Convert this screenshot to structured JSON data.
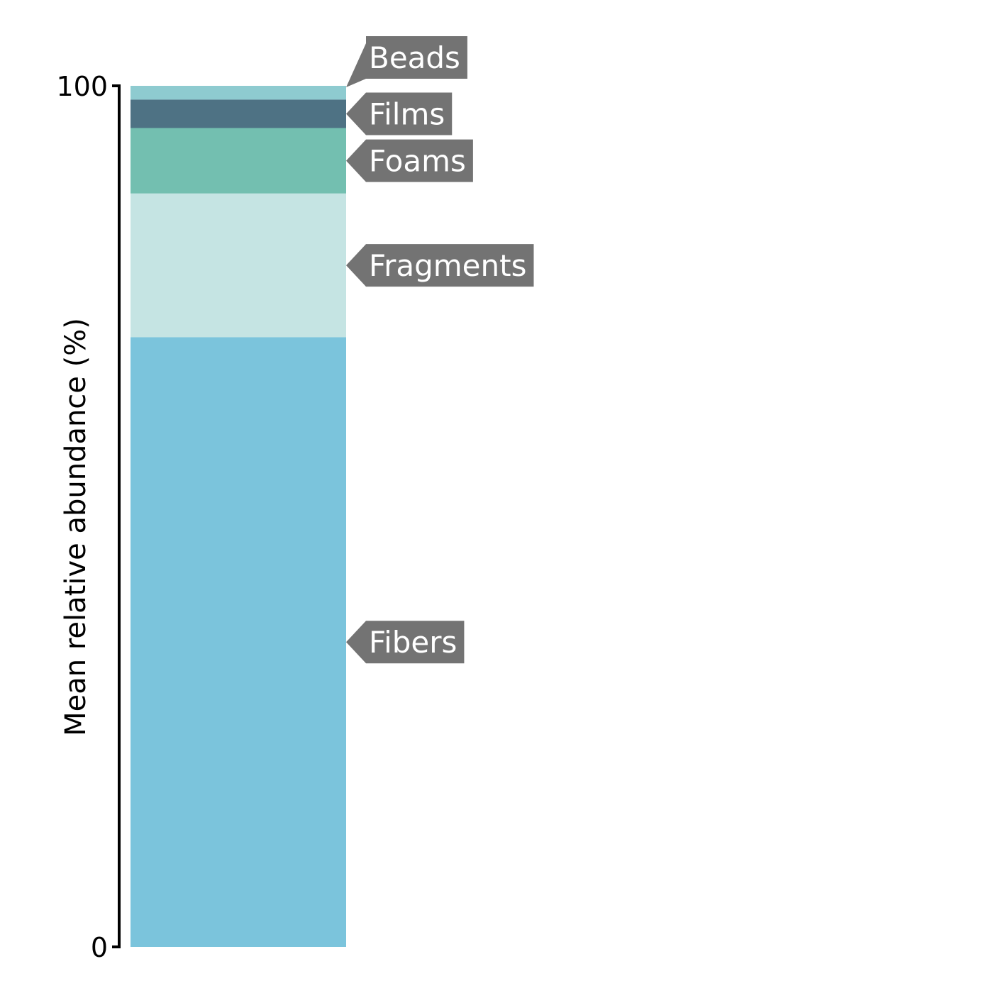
{
  "chart_data": {
    "type": "bar",
    "stacked": true,
    "ylabel": "Mean relative abundance (%)",
    "xlabel": "",
    "ylim": [
      0,
      100
    ],
    "yticks": [
      "0",
      "100"
    ],
    "grid": false,
    "legend": "direct labels to the right of the bar",
    "series": [
      {
        "name": "Fibers",
        "value": 70.8,
        "color": "#7bc4dc"
      },
      {
        "name": "Fragments",
        "value": 16.7,
        "color": "#c5e4e3"
      },
      {
        "name": "Foams",
        "value": 7.6,
        "color": "#73bfb0"
      },
      {
        "name": "Films",
        "value": 3.3,
        "color": "#4e7284"
      },
      {
        "name": "Beads",
        "value": 1.6,
        "color": "#8ecbd0"
      }
    ],
    "label_color": "#737373"
  }
}
